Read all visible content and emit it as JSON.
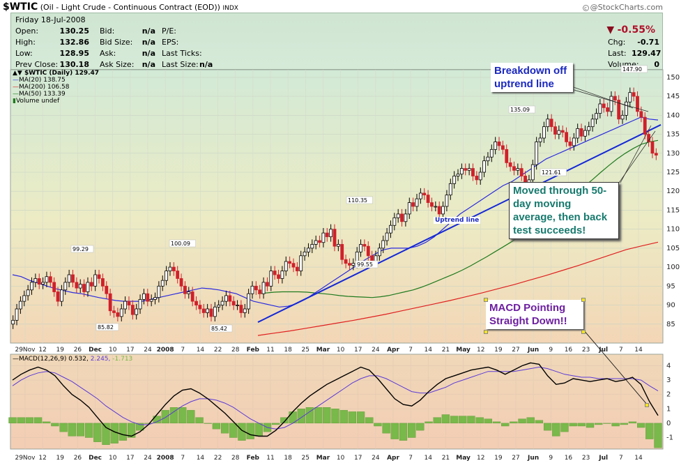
{
  "header": {
    "symbol": "$WTIC",
    "description": "(Oil - Light Crude - Continuous Contract (EOD))",
    "exchange": "INDX",
    "credit": "@StockCharts.com",
    "credit_mark": "c"
  },
  "quote": {
    "date": "Friday   18-Jul-2008",
    "open_label": "Open:",
    "open": "130.25",
    "high_label": "High:",
    "high": "132.86",
    "low_label": "Low:",
    "low": "128.95",
    "prev_close_label": "Prev Close:",
    "prev_close": "130.18",
    "bid_label": "Bid:",
    "bid": "n/a",
    "bid_size_label": "Bid Size:",
    "bid_size": "n/a",
    "ask_label": "Ask:",
    "ask": "n/a",
    "ask_size_label": "Ask Size:",
    "ask_size": "n/a",
    "pe_label": "P/E:",
    "eps_label": "EPS:",
    "last_ticks_label": "Last Ticks:",
    "last_size_label": "Last Size:",
    "last_size": "n/a",
    "change_pct": "-0.55%",
    "change_arrow": "▼",
    "chg_label": "Chg:",
    "chg": "-0.71",
    "last_label": "Last:",
    "last": "129.47",
    "volume_label": "Volume:",
    "volume": "0"
  },
  "legend": {
    "price": "$WTIC (Daily) 129.47",
    "ma20": "MA(20) 138.75",
    "ma200": "MA(200) 106.58",
    "ma50": "MA(50) 133.39",
    "volume": "Volume undef"
  },
  "macd_legend": {
    "label": "MACD(12,26,9)",
    "macd": "0.532,",
    "signal": "2.245,",
    "hist": "-1.713"
  },
  "annotations": {
    "breakdown": "Breakdown off uptrend line",
    "moved": "Moved through 50-day moving average, then back test succeeds!",
    "macd": "MACD Pointing Straight Down!!",
    "uptrend": "Uptrend line"
  },
  "colors": {
    "up_candle": "#000000",
    "down_candle": "#d0202a",
    "ma20": "#2a2ae0",
    "ma200": "#e02020",
    "ma50": "#1e7a1e",
    "trendline": "#1428d8",
    "macd_line": "#000000",
    "signal_line": "#5a3ad8",
    "hist": "#79b84a"
  },
  "chart_data": [
    {
      "type": "candlestick",
      "title": "$WTIC (Oil - Light Crude - Continuous Contract (EOD))",
      "ylim": [
        80,
        152
      ],
      "yticks": [
        85,
        90,
        95,
        100,
        105,
        110,
        115,
        120,
        125,
        130,
        135,
        140,
        145,
        150
      ],
      "x_tick_labels": [
        "29Nov",
        "12",
        "19",
        "26",
        "Dec",
        "10",
        "17",
        "24",
        "2008",
        "7",
        "14",
        "22",
        "28",
        "Feb",
        "11",
        "18",
        "25",
        "Mar",
        "10",
        "17",
        "24",
        "Apr",
        "7",
        "14",
        "21",
        "May",
        "12",
        "19",
        "27",
        "Jun",
        "9",
        "16",
        "23",
        "Jul",
        "7",
        "14"
      ],
      "labeled_points": [
        {
          "label": "99.29",
          "date": "2007-11-21",
          "value": 99.29
        },
        {
          "label": "100.09",
          "date": "2008-01-02",
          "value": 100.09
        },
        {
          "label": "85.82",
          "date": "2007-12-05",
          "value": 85.82
        },
        {
          "label": "85.42",
          "date": "2008-01-23",
          "value": 85.42
        },
        {
          "label": "110.35",
          "date": "2008-03-17",
          "value": 110.35
        },
        {
          "label": "99.55",
          "date": "2008-03-20",
          "value": 99.55
        },
        {
          "label": "135.09",
          "date": "2008-05-22",
          "value": 135.09
        },
        {
          "label": "121.61",
          "date": "2008-06-04",
          "value": 121.61
        },
        {
          "label": "147.90",
          "date": "2008-07-11",
          "value": 147.9
        }
      ],
      "closes": [
        86,
        89,
        91,
        92.5,
        94,
        96,
        97,
        95.5,
        96,
        97.5,
        96,
        93.5,
        91,
        94,
        96,
        98,
        96,
        94.5,
        95.5,
        93.5,
        96,
        95,
        98,
        97,
        95,
        93,
        88.5,
        88,
        87,
        89,
        91,
        90,
        87.5,
        89,
        91.5,
        93,
        91,
        91.5,
        92,
        95,
        96.5,
        99,
        100,
        99,
        97,
        95,
        93,
        93.5,
        91,
        90,
        89,
        88,
        89,
        87,
        89.5,
        90,
        91,
        92.5,
        91,
        90,
        90,
        88,
        89,
        93,
        95,
        94,
        93,
        96,
        95,
        99,
        98,
        97,
        99,
        101.5,
        101,
        100,
        99,
        103,
        104,
        105,
        106,
        107,
        106.5,
        109,
        108,
        110,
        105.5,
        106,
        102,
        101,
        100.5,
        101,
        104,
        106,
        105.5,
        103,
        101.5,
        103,
        105,
        107,
        109,
        111,
        113,
        114,
        112,
        114,
        117,
        116,
        118,
        119.5,
        119,
        117,
        116,
        116,
        114,
        116,
        119,
        122,
        124,
        124.5,
        126,
        125.5,
        126,
        124,
        123,
        125,
        128,
        129,
        131,
        133,
        132,
        131,
        127.5,
        126.5,
        125.5,
        126,
        124,
        122,
        123,
        127,
        133,
        134,
        137,
        139,
        137,
        135,
        136,
        135.5,
        133,
        132,
        134,
        136.5,
        134.5,
        136,
        137,
        139,
        140.5,
        143,
        142,
        141,
        145,
        144,
        139,
        140,
        143.5,
        146,
        145,
        141,
        139.5,
        135,
        133,
        130,
        129.5
      ],
      "ma20": [
        98,
        97.5,
        96.5,
        95.8,
        95,
        94.3,
        93.8,
        93.3,
        93,
        92.5,
        92,
        91.6,
        91.2,
        91,
        91,
        91,
        91.5,
        92,
        92.5,
        93,
        93.5,
        94,
        94.5,
        94.3,
        94,
        93.5,
        93,
        92,
        91,
        90.5,
        90,
        89.5,
        89.7,
        90.4,
        91.5,
        93,
        94.5,
        96,
        97.5,
        99,
        100.5,
        102,
        103.3,
        104.5,
        105,
        105,
        105,
        105.5,
        106.5,
        108,
        110,
        112,
        114,
        115.5,
        117,
        118.5,
        120,
        121.5,
        122.5,
        124,
        125.5,
        127,
        128.5,
        129.5,
        130.5,
        131.5,
        132.5,
        133.5,
        134.5,
        135.5,
        136.5,
        137.5,
        138.5,
        139.5,
        139,
        138.75
      ],
      "ma50": [
        93,
        93.2,
        93.4,
        93.5,
        93.5,
        93.5,
        93.4,
        93.2,
        93,
        92.8,
        92.5,
        92.3,
        92.2,
        92.1,
        92,
        92.2,
        92.5,
        93,
        93.5,
        94,
        94.7,
        95.5,
        96.4,
        97.3,
        98.2,
        99.2,
        100.3,
        101.5,
        102.7,
        104,
        105.3,
        106.6,
        108,
        109.5,
        111,
        112.6,
        114.3,
        116,
        117.7,
        119.5,
        121.3,
        123.1,
        125,
        126.8,
        128.5,
        130,
        131.3,
        132.4,
        133,
        133.39
      ],
      "ma200": [
        82,
        82.6,
        83.2,
        83.9,
        84.6,
        85.3,
        86,
        86.8,
        87.6,
        88.5,
        89.4,
        90.3,
        91.2,
        92.2,
        93.2,
        94.3,
        95.4,
        96.6,
        97.8,
        99.1,
        100.4,
        101.8,
        103.2,
        104.6,
        105.6,
        106.58
      ],
      "uptrend": {
        "label": "Uptrend line",
        "from": [
          "2008-01-29",
          85.5
        ],
        "to": [
          "2008-07-18",
          137.5
        ]
      }
    },
    {
      "type": "line+bar",
      "title": "MACD(12,26,9)",
      "ylim": [
        -1.8,
        4.8
      ],
      "yticks": [
        -1,
        0,
        1,
        2,
        3,
        4
      ],
      "series": [
        {
          "name": "MACD",
          "values": [
            3.0,
            3.4,
            3.7,
            3.9,
            3.7,
            3.3,
            2.6,
            2.0,
            1.6,
            1.1,
            0.4,
            -0.3,
            -0.6,
            -0.8,
            -0.9,
            -0.6,
            -0.1,
            0.6,
            1.3,
            1.9,
            2.3,
            2.4,
            2.1,
            1.7,
            1.2,
            0.7,
            0.1,
            -0.5,
            -0.8,
            -0.9,
            -0.9,
            -0.5,
            0.1,
            0.8,
            1.4,
            1.9,
            2.3,
            2.7,
            3.0,
            3.3,
            3.6,
            3.9,
            3.7,
            3.1,
            2.4,
            1.7,
            1.3,
            1.2,
            1.6,
            2.2,
            2.7,
            3.1,
            3.3,
            3.5,
            3.7,
            3.8,
            3.9,
            3.7,
            3.4,
            3.7,
            4.0,
            4.2,
            4.1,
            3.3,
            2.7,
            2.8,
            3.1,
            3.0,
            2.9,
            3.0,
            3.1,
            2.9,
            3.0,
            3.2,
            2.7,
            1.5,
            0.532
          ]
        },
        {
          "name": "Signal",
          "values": [
            2.6,
            3.0,
            3.3,
            3.5,
            3.6,
            3.5,
            3.2,
            2.9,
            2.5,
            2.1,
            1.7,
            1.2,
            0.8,
            0.4,
            0.1,
            -0.1,
            -0.1,
            0.1,
            0.4,
            0.8,
            1.2,
            1.5,
            1.7,
            1.7,
            1.6,
            1.4,
            1.1,
            0.7,
            0.3,
            0.0,
            -0.3,
            -0.4,
            -0.3,
            0.0,
            0.4,
            0.8,
            1.2,
            1.6,
            2.0,
            2.4,
            2.8,
            3.1,
            3.3,
            3.3,
            3.1,
            2.8,
            2.5,
            2.2,
            2.1,
            2.1,
            2.3,
            2.5,
            2.8,
            3.0,
            3.2,
            3.4,
            3.6,
            3.6,
            3.6,
            3.6,
            3.7,
            3.8,
            3.9,
            3.8,
            3.6,
            3.4,
            3.3,
            3.2,
            3.2,
            3.1,
            3.1,
            3.1,
            3.1,
            3.1,
            3.0,
            2.6,
            2.245
          ]
        }
      ]
    }
  ]
}
